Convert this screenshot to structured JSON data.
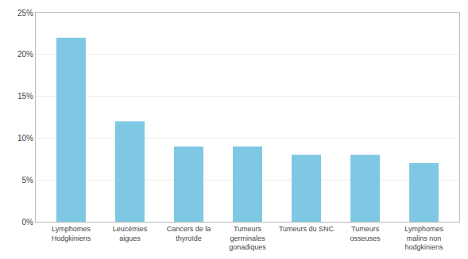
{
  "chart_data": {
    "type": "bar",
    "categories": [
      "Lymphomes\nHodgkiniens",
      "Leucémies\naigues",
      "Cancers de la\nthyroïde",
      "Tumeurs\ngerminales\ngonadiques",
      "Tumeurs du SNC",
      "Tumeurs\nosseuses",
      "Lymphomes\nmalins non\nhodgkiniens"
    ],
    "values": [
      22,
      12,
      9,
      9,
      8,
      8,
      7
    ],
    "color": "#7ec8e3",
    "ylim": [
      0,
      25
    ],
    "yticks": [
      {
        "value": 0,
        "label": "0%"
      },
      {
        "value": 5,
        "label": "5%"
      },
      {
        "value": 10,
        "label": "10%"
      },
      {
        "value": 15,
        "label": "15%"
      },
      {
        "value": 20,
        "label": "20%"
      },
      {
        "value": 25,
        "label": "25%"
      }
    ],
    "grid": true
  }
}
